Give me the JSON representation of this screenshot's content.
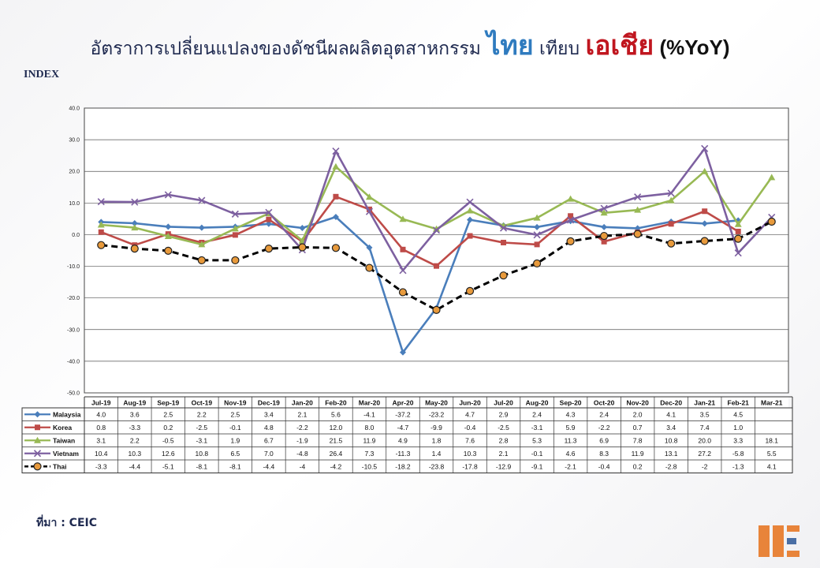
{
  "title": {
    "prefix": "อัตราการเปลี่ยนแปลงของดัชนีผลผลิตอุตสาหกรรม",
    "thai_word": "ไทย",
    "middle": "เทียบ",
    "asia_word": "เอเชีย",
    "suffix": "(%YoY)"
  },
  "y_unit_label": "INDEX",
  "source_label": "ที่มา : CEIC",
  "colors": {
    "Malaysia": "#4a7ebb",
    "Korea": "#be4b48",
    "Taiwan": "#98b954",
    "Vietnam": "#7d60a0",
    "Thai": "#000000",
    "thai_marker": "#e89a3c"
  },
  "chart_data": {
    "type": "line",
    "title": "อัตราการเปลี่ยนแปลงของดัชนีผลผลิตอุตสาหกรรม ไทย เทียบ เอเชีย (%YoY)",
    "ylabel": "INDEX",
    "ylim": [
      -50,
      40
    ],
    "yticks": [
      "40.0",
      "30.0",
      "20.0",
      "10.0",
      "0.0",
      "-10.0",
      "-20.0",
      "-30.0",
      "-40.0",
      "-50.0"
    ],
    "grid": true,
    "legend": "data-table",
    "categories": [
      "Jul-19",
      "Aug-19",
      "Sep-19",
      "Oct-19",
      "Nov-19",
      "Dec-19",
      "Jan-20",
      "Feb-20",
      "Mar-20",
      "Apr-20",
      "May-20",
      "Jun-20",
      "Jul-20",
      "Aug-20",
      "Sep-20",
      "Oct-20",
      "Nov-20",
      "Dec-20",
      "Jan-21",
      "Feb-21",
      "Mar-21"
    ],
    "series": [
      {
        "name": "Malaysia",
        "marker": "diamond",
        "values": [
          4.0,
          3.6,
          2.5,
          2.2,
          2.5,
          3.4,
          2.1,
          5.6,
          -4.1,
          -37.2,
          -23.2,
          4.7,
          2.9,
          2.4,
          4.3,
          2.4,
          2.0,
          4.1,
          3.5,
          4.5,
          null
        ],
        "labels": [
          "4.0",
          "3.6",
          "2.5",
          "2.2",
          "2.5",
          "3.4",
          "2.1",
          "5.6",
          "-4.1",
          "-37.2",
          "-23.2",
          "4.7",
          "2.9",
          "2.4",
          "4.3",
          "2.4",
          "2.0",
          "4.1",
          "3.5",
          "4.5",
          ""
        ]
      },
      {
        "name": "Korea",
        "marker": "square",
        "values": [
          0.8,
          -3.3,
          0.2,
          -2.5,
          -0.1,
          4.8,
          -2.2,
          12.0,
          8.0,
          -4.7,
          -9.9,
          -0.4,
          -2.5,
          -3.1,
          5.9,
          -2.2,
          0.7,
          3.4,
          7.4,
          1.0,
          null
        ],
        "labels": [
          "0.8",
          "-3.3",
          "0.2",
          "-2.5",
          "-0.1",
          "4.8",
          "-2.2",
          "12.0",
          "8.0",
          "-4.7",
          "-9.9",
          "-0.4",
          "-2.5",
          "-3.1",
          "5.9",
          "-2.2",
          "0.7",
          "3.4",
          "7.4",
          "1.0",
          ""
        ]
      },
      {
        "name": "Taiwan",
        "marker": "triangle",
        "values": [
          3.1,
          2.2,
          -0.5,
          -3.1,
          1.9,
          6.7,
          -1.9,
          21.5,
          11.9,
          4.9,
          1.8,
          7.6,
          2.8,
          5.3,
          11.3,
          6.9,
          7.8,
          10.8,
          20.0,
          3.3,
          18.1
        ],
        "labels": [
          "3.1",
          "2.2",
          "-0.5",
          "-3.1",
          "1.9",
          "6.7",
          "-1.9",
          "21.5",
          "11.9",
          "4.9",
          "1.8",
          "7.6",
          "2.8",
          "5.3",
          "11.3",
          "6.9",
          "7.8",
          "10.8",
          "20.0",
          "3.3",
          "18.1"
        ]
      },
      {
        "name": "Vietnam",
        "marker": "x",
        "values": [
          10.4,
          10.3,
          12.6,
          10.8,
          6.5,
          7.0,
          -4.8,
          26.4,
          7.3,
          -11.3,
          1.4,
          10.3,
          2.1,
          -0.1,
          4.6,
          8.3,
          11.9,
          13.1,
          27.2,
          -5.8,
          5.5
        ],
        "labels": [
          "10.4",
          "10.3",
          "12.6",
          "10.8",
          "6.5",
          "7.0",
          "-4.8",
          "26.4",
          "7.3",
          "-11.3",
          "1.4",
          "10.3",
          "2.1",
          "-0.1",
          "4.6",
          "8.3",
          "11.9",
          "13.1",
          "27.2",
          "-5.8",
          "5.5"
        ]
      },
      {
        "name": "Thai",
        "marker": "circle",
        "dashed": true,
        "values": [
          -3.3,
          -4.4,
          -5.1,
          -8.1,
          -8.1,
          -4.4,
          -4,
          -4.2,
          -10.5,
          -18.2,
          -23.8,
          -17.8,
          -12.9,
          -9.1,
          -2.1,
          -0.4,
          0.2,
          -2.8,
          -2,
          -1.3,
          4.1
        ],
        "labels": [
          "-3.3",
          "-4.4",
          "-5.1",
          "-8.1",
          "-8.1",
          "-4.4",
          "-4",
          "-4.2",
          "-10.5",
          "-18.2",
          "-23.8",
          "-17.8",
          "-12.9",
          "-9.1",
          "-2.1",
          "-0.4",
          "0.2",
          "-2.8",
          "-2",
          "-1.3",
          "4.1"
        ]
      }
    ]
  }
}
